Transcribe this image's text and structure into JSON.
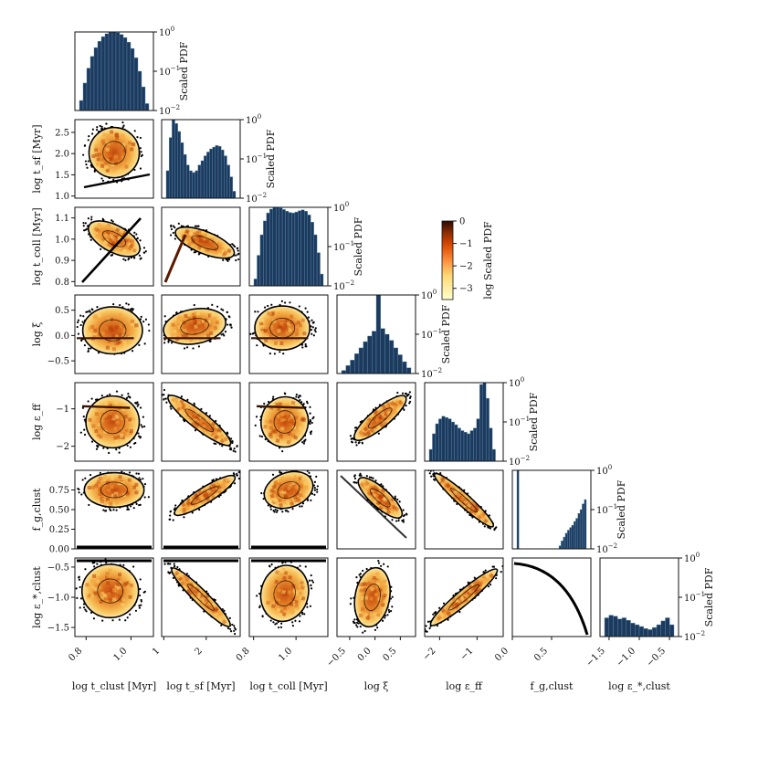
{
  "chart_data": {
    "type": "corner-plot",
    "variables": [
      {
        "key": "tclust",
        "xlabel": "log t_clust [Myr]",
        "ylabel": "log t_clust [Myr]",
        "range": [
          0.75,
          1.1
        ],
        "ticks": [
          0.8,
          1.0
        ],
        "tick_labels": [
          "0.8",
          "1.0"
        ]
      },
      {
        "key": "tsf",
        "xlabel": "log t_sf [Myr]",
        "ylabel": "log t_sf [Myr]",
        "range": [
          0.95,
          2.8
        ],
        "ticks": [
          1.0,
          1.5,
          2.0,
          2.5
        ],
        "tick_labels": [
          "1.0",
          "1.5",
          "2.0",
          "2.5"
        ],
        "xticks": [
          1,
          2
        ],
        "xtick_labels": [
          "1",
          "2"
        ]
      },
      {
        "key": "tcoll",
        "xlabel": "log t_coll [Myr]",
        "ylabel": "log t_coll [Myr]",
        "range": [
          0.78,
          1.15
        ],
        "ticks": [
          0.8,
          0.9,
          1.0,
          1.1
        ],
        "tick_labels": [
          "0.8",
          "0.9",
          "1.0",
          "1.1"
        ],
        "xticks": [
          0.8,
          1.0
        ],
        "xtick_labels": [
          "0.8",
          "1.0"
        ]
      },
      {
        "key": "xi",
        "xlabel": "log ξ",
        "ylabel": "log ξ",
        "range": [
          -0.75,
          0.8
        ],
        "ticks": [
          -0.5,
          0.0,
          0.5
        ],
        "tick_labels": [
          "−0.5",
          "0.0",
          "0.5"
        ]
      },
      {
        "key": "eff",
        "xlabel": "log ε_ff",
        "ylabel": "log ε_ff",
        "range": [
          -2.4,
          -0.3
        ],
        "ticks": [
          -2,
          -1
        ],
        "tick_labels": [
          "−2",
          "−1"
        ]
      },
      {
        "key": "fg",
        "xlabel": "f_g,clust",
        "ylabel": "f_g,clust",
        "range": [
          0.0,
          1.0
        ],
        "ticks": [
          0.0,
          0.25,
          0.5,
          0.75
        ],
        "tick_labels": [
          "0.00",
          "0.25",
          "0.50",
          "0.75"
        ],
        "xticks": [
          0.0,
          0.5
        ],
        "xtick_labels": [
          "0.0",
          "0.5"
        ]
      },
      {
        "key": "estar",
        "xlabel": "log ε_*,clust",
        "ylabel": "log ε_*,clust",
        "range": [
          -1.65,
          -0.35
        ],
        "ticks": [
          -1.5,
          -1.0,
          -0.5
        ],
        "tick_labels": [
          "−1.5",
          "−1.0",
          "−0.5"
        ]
      }
    ],
    "histogram_ylabel": "Scaled PDF",
    "histogram_yscale": "log",
    "histogram_ylim": [
      0.01,
      1.0
    ],
    "histogram_yticks": [
      "10^0",
      "10^-1",
      "10^-2"
    ],
    "marginals": [
      {
        "var": "tclust",
        "values": [
          0.018,
          0.05,
          0.12,
          0.24,
          0.4,
          0.58,
          0.76,
          0.9,
          0.98,
          1.0,
          0.96,
          0.86,
          0.72,
          0.55,
          0.38,
          0.22,
          0.1,
          0.04,
          0.015
        ]
      },
      {
        "var": "tsf",
        "values": [
          0.05,
          0.35,
          1.0,
          0.8,
          0.5,
          0.26,
          0.13,
          0.07,
          0.05,
          0.045,
          0.05,
          0.07,
          0.09,
          0.12,
          0.15,
          0.18,
          0.2,
          0.22,
          0.21,
          0.17,
          0.12,
          0.07,
          0.035,
          0.015
        ]
      },
      {
        "var": "tcoll",
        "values": [
          0.015,
          0.06,
          0.2,
          0.45,
          0.72,
          0.9,
          0.98,
          1.0,
          0.96,
          0.88,
          0.8,
          0.74,
          0.72,
          0.76,
          0.82,
          0.86,
          0.8,
          0.64,
          0.42,
          0.2,
          0.07,
          0.02
        ]
      },
      {
        "var": "xi",
        "values": [
          0.012,
          0.016,
          0.022,
          0.032,
          0.045,
          0.065,
          0.09,
          0.12,
          1.0,
          0.14,
          0.1,
          0.07,
          0.045,
          0.03,
          0.02,
          0.014
        ]
      },
      {
        "var": "eff",
        "values": [
          0.02,
          0.05,
          0.09,
          0.12,
          0.14,
          0.13,
          0.12,
          0.1,
          0.085,
          0.07,
          0.06,
          0.055,
          0.05,
          0.06,
          0.07,
          0.12,
          0.9,
          1.0,
          0.4,
          0.07,
          0.02,
          0.01
        ]
      },
      {
        "var": "fg",
        "values": [
          1.0,
          0.0,
          0.0,
          0.0,
          0.0,
          0.0,
          0.0,
          0.0,
          0.0,
          0.0,
          0.0,
          0.0,
          0.0,
          0.0,
          0.0,
          0.0,
          0.0,
          0.0,
          0.0,
          0.0,
          0.012,
          0.016,
          0.02,
          0.025,
          0.03,
          0.035,
          0.04,
          0.05,
          0.06,
          0.08,
          0.1,
          0.14,
          0.18
        ]
      },
      {
        "var": "estar",
        "values": [
          0.03,
          0.035,
          0.033,
          0.028,
          0.03,
          0.026,
          0.022,
          0.02,
          0.018,
          0.016,
          0.015,
          0.017,
          0.02,
          0.025,
          0.03,
          0.02
        ]
      }
    ],
    "colorbar": {
      "label": "log Scaled PDF",
      "range": [
        -3.5,
        0
      ],
      "ticks": [
        0,
        -1,
        -2,
        -3
      ],
      "tick_labels": [
        "0",
        "−1",
        "−2",
        "−3"
      ],
      "colormap": "YlOrBr"
    },
    "colors": {
      "hist_fill": "#1d3a5c",
      "hist_edge": "#5a8fb8",
      "contour": "#000000",
      "scatter": "#000000"
    }
  }
}
